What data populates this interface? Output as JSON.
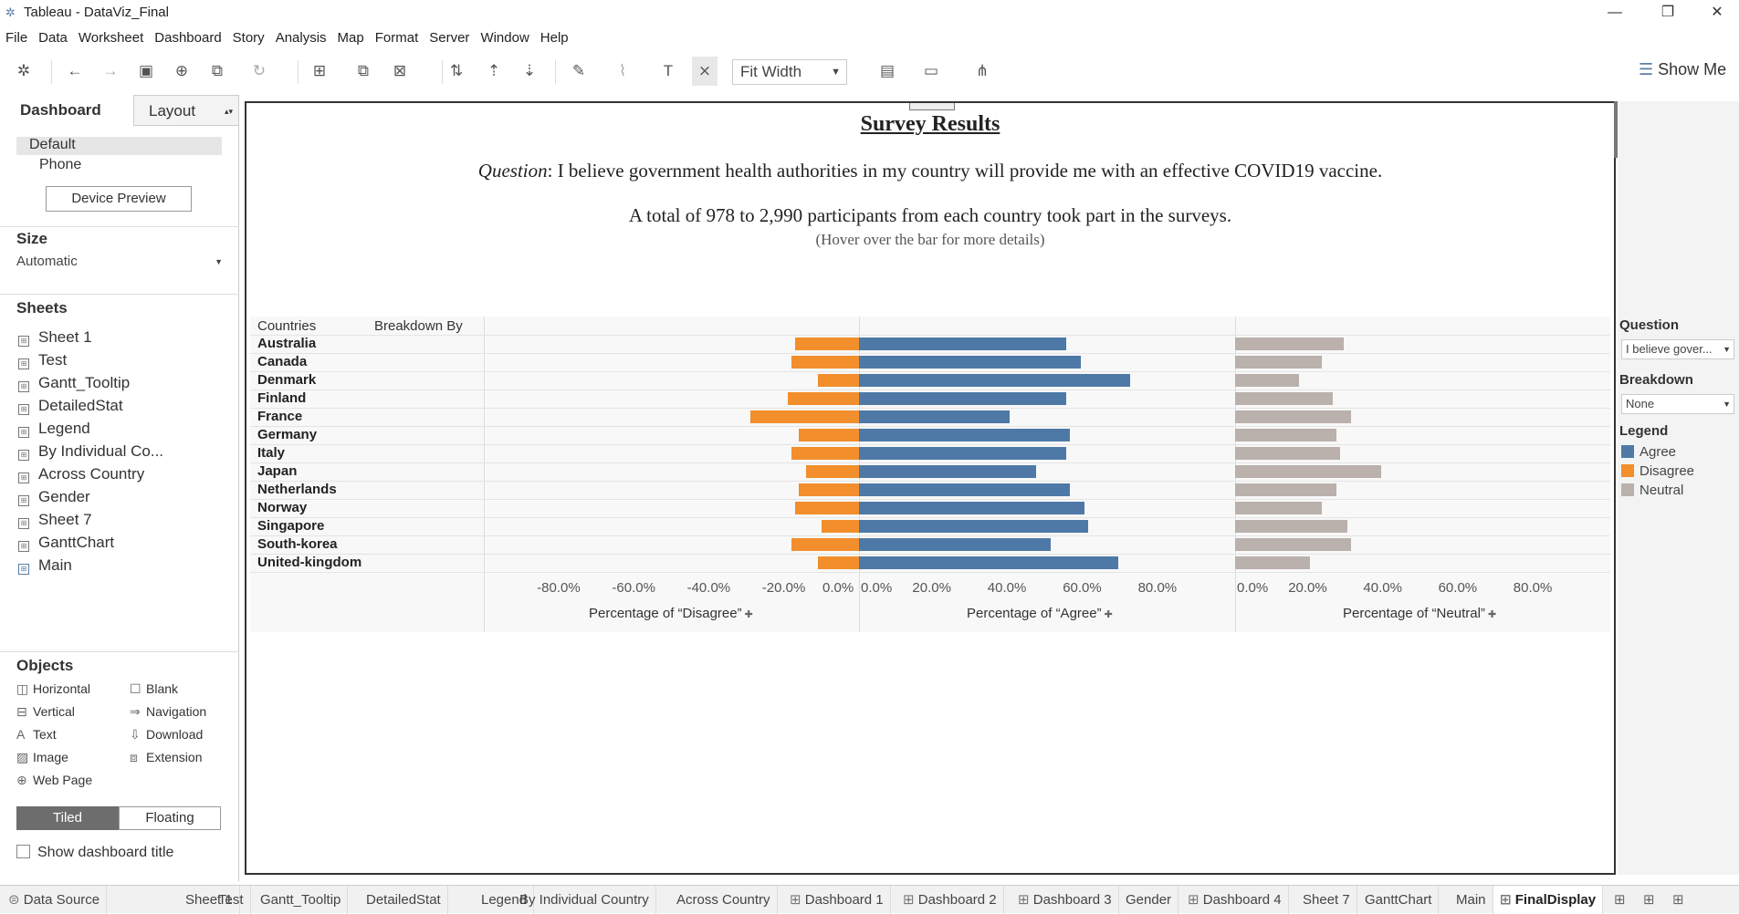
{
  "window": {
    "title": "Tableau - DataViz_Final"
  },
  "menu": [
    "File",
    "Data",
    "Worksheet",
    "Dashboard",
    "Story",
    "Analysis",
    "Map",
    "Format",
    "Server",
    "Window",
    "Help"
  ],
  "toolbar": {
    "fit_label": "Fit Width",
    "show_me": "Show Me"
  },
  "left_panel": {
    "tab_dashboard": "Dashboard",
    "tab_layout": "Layout",
    "devices": [
      "Default",
      "Phone"
    ],
    "device_preview": "Device Preview",
    "size_header": "Size",
    "size_value": "Automatic",
    "sheets_header": "Sheets",
    "sheets": [
      "Sheet 1",
      "Test",
      "Gantt_Tooltip",
      "DetailedStat",
      "Legend",
      "By Individual Co...",
      "Across Country",
      "Gender",
      "Sheet 7",
      "GanttChart",
      "Main"
    ],
    "objects_header": "Objects",
    "objects": [
      "Horizontal",
      "Blank",
      "Vertical",
      "Navigation",
      "Text",
      "Download",
      "Image",
      "Extension",
      "Web Page"
    ],
    "tiled": "Tiled",
    "floating": "Floating",
    "show_title": "Show dashboard title"
  },
  "dashboard": {
    "title": "Survey Results",
    "question_prefix": "Question",
    "question_text": ": I believe government health authorities in my country will provide me with an effective COVID19 vaccine.",
    "participants": "A total of 978 to 2,990 participants from each country took part in the surveys.",
    "hover_note": "(Hover over the bar for more details)",
    "col_countries": "Countries",
    "col_breakdown": "Breakdown By"
  },
  "chart_data": {
    "type": "bar",
    "categories": [
      "Australia",
      "Canada",
      "Denmark",
      "Finland",
      "France",
      "Germany",
      "Italy",
      "Japan",
      "Netherlands",
      "Norway",
      "Singapore",
      "South-korea",
      "United-kingdom"
    ],
    "series": [
      {
        "name": "Disagree",
        "color": "#f28e2b",
        "values": [
          -17,
          -18,
          -11,
          -19,
          -29,
          -16,
          -18,
          -14,
          -16,
          -17,
          -10,
          -18,
          -11
        ]
      },
      {
        "name": "Agree",
        "color": "#4e79a7",
        "values": [
          55,
          59,
          72,
          55,
          40,
          56,
          55,
          47,
          56,
          60,
          61,
          51,
          69
        ]
      },
      {
        "name": "Neutral",
        "color": "#bab0ac",
        "values": [
          29,
          23,
          17,
          26,
          31,
          27,
          28,
          39,
          27,
          23,
          30,
          31,
          20
        ]
      }
    ],
    "disagree_ticks": [
      "-80.0%",
      "-60.0%",
      "-40.0%",
      "-20.0%",
      "0.0%"
    ],
    "agree_ticks": [
      "0.0%",
      "20.0%",
      "40.0%",
      "60.0%",
      "80.0%"
    ],
    "neutral_ticks": [
      "0.0%",
      "20.0%",
      "40.0%",
      "60.0%",
      "80.0%"
    ],
    "xlabel_disagree": "Percentage of “Disagree”",
    "xlabel_agree": "Percentage of “Agree”",
    "xlabel_neutral": "Percentage of “Neutral”",
    "xlim_disagree": [
      -100,
      0
    ],
    "xlim_agree": [
      0,
      100
    ],
    "xlim_neutral": [
      0,
      100
    ]
  },
  "filters": {
    "question_label": "Question",
    "question_value": "I believe gover...",
    "breakdown_label": "Breakdown",
    "breakdown_value": "None",
    "legend_label": "Legend",
    "legend_items": [
      {
        "name": "Agree",
        "color": "#4e79a7"
      },
      {
        "name": "Disagree",
        "color": "#f28e2b"
      },
      {
        "name": "Neutral",
        "color": "#bab0ac"
      }
    ]
  },
  "bottom_tabs": [
    "Data Source",
    "Sheet 1",
    "Test",
    "Gantt_Tooltip",
    "DetailedStat",
    "Legend",
    "By Individual Country",
    "Across Country",
    "Dashboard 1",
    "Dashboard 2",
    "Dashboard 3",
    "Gender",
    "Dashboard 4",
    "Sheet 7",
    "GanttChart",
    "Main",
    "FinalDisplay"
  ],
  "active_tab": "FinalDisplay"
}
